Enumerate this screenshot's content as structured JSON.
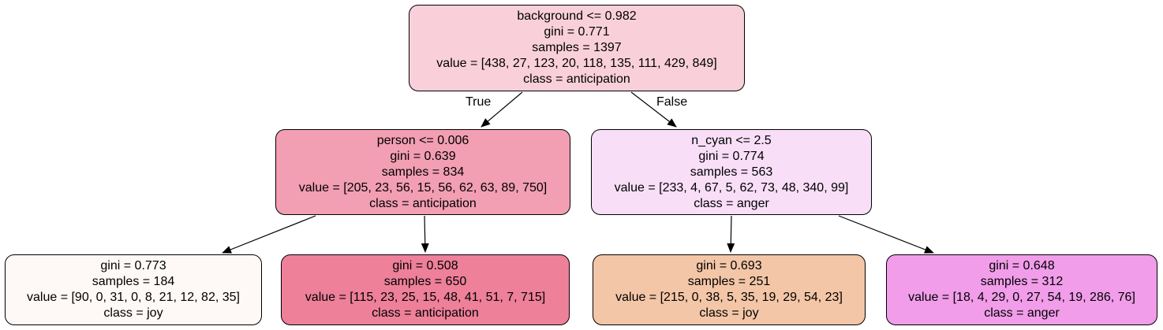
{
  "nodes": [
    {
      "id": "root",
      "lines": [
        "background <= 0.982",
        "gini = 0.771",
        "samples = 1397",
        "value = [438, 27, 123, 20, 118, 135, 111, 429, 849]",
        "class = anticipation"
      ],
      "color": "#f9d0da"
    },
    {
      "id": "left",
      "lines": [
        "person <= 0.006",
        "gini = 0.639",
        "samples = 834",
        "value = [205, 23, 56, 15, 56, 62, 63, 89, 750]",
        "class = anticipation"
      ],
      "color": "#f29eb3"
    },
    {
      "id": "right",
      "lines": [
        "n_cyan <= 2.5",
        "gini = 0.774",
        "samples = 563",
        "value = [233, 4, 67, 5, 62, 73, 48, 340, 99]",
        "class = anger"
      ],
      "color": "#f9def8"
    },
    {
      "id": "leaf-1",
      "lines": [
        "gini = 0.773",
        "samples = 184",
        "value = [90, 0, 31, 0, 8, 21, 12, 82, 35]",
        "class = joy"
      ],
      "color": "#fef9f6"
    },
    {
      "id": "leaf-2",
      "lines": [
        "gini = 0.508",
        "samples = 650",
        "value = [115, 23, 25, 15, 48, 41, 51, 7, 715]",
        "class = anticipation"
      ],
      "color": "#ee8099"
    },
    {
      "id": "leaf-3",
      "lines": [
        "gini = 0.693",
        "samples = 251",
        "value = [215, 0, 38, 5, 35, 19, 29, 54, 23]",
        "class = joy"
      ],
      "color": "#f3c6a7"
    },
    {
      "id": "leaf-4",
      "lines": [
        "gini = 0.648",
        "samples = 312",
        "value = [18, 4, 29, 0, 27, 54, 19, 286, 76]",
        "class = anger"
      ],
      "color": "#f19de9"
    }
  ],
  "edge_labels": {
    "true": "True",
    "false": "False"
  }
}
